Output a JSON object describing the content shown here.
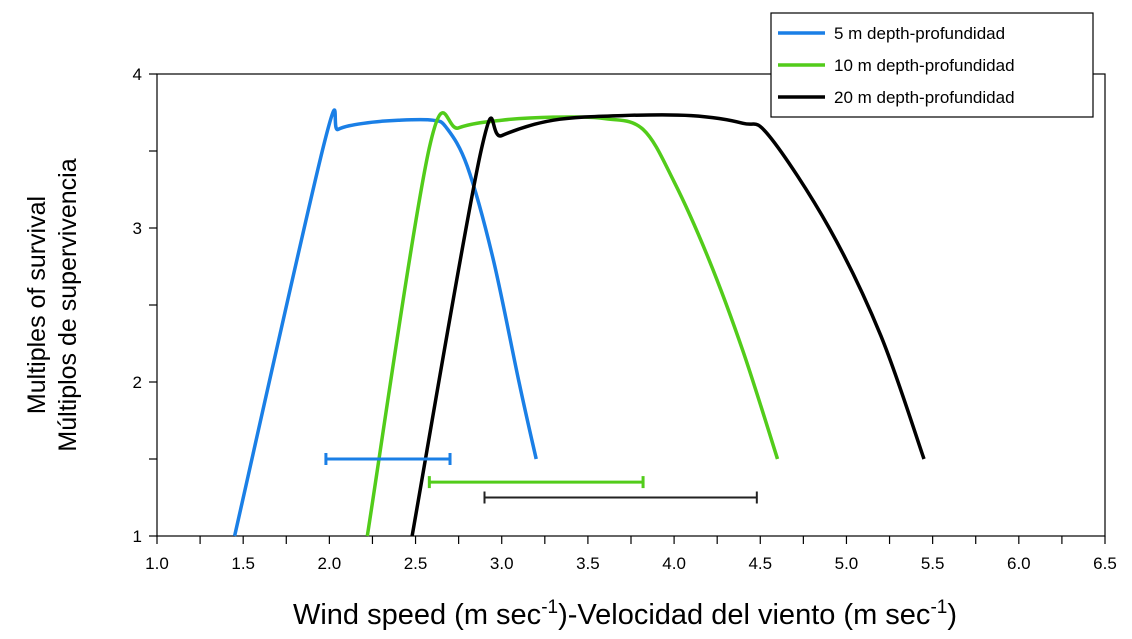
{
  "chart_data": {
    "type": "line",
    "xlabel": {
      "pre": "Wind speed (m sec",
      "sup1": "-1",
      "mid": ")-Velocidad del viento (m sec",
      "sup2": "-1",
      "post": ")"
    },
    "ylabel": [
      "Múltiplos de supervivencia",
      "Multiples of survival"
    ],
    "xlim": [
      1.0,
      6.5
    ],
    "ylim": [
      1,
      4
    ],
    "xticks": [
      "1.0",
      "1.5",
      "2.0",
      "2.5",
      "3.0",
      "3.5",
      "4.0",
      "4.5",
      "5.0",
      "5.5",
      "6.0",
      "6.5"
    ],
    "yticks": [
      "1",
      "2",
      "3",
      "4"
    ],
    "legend_position": "top-right, outside plot",
    "grid": false,
    "series": [
      {
        "name": "5 m depth-profundidad",
        "color": "#1a7fe6",
        "points": [
          [
            1.45,
            1.0
          ],
          [
            1.97,
            3.55
          ],
          [
            2.05,
            3.64
          ],
          [
            2.2,
            3.68
          ],
          [
            2.4,
            3.7
          ],
          [
            2.6,
            3.7
          ],
          [
            2.68,
            3.65
          ],
          [
            2.8,
            3.4
          ],
          [
            2.95,
            2.8
          ],
          [
            3.1,
            2.0
          ],
          [
            3.2,
            1.5
          ]
        ],
        "range_bar": {
          "x_min": 1.98,
          "x_max": 2.7,
          "y": 1.5
        }
      },
      {
        "name": "10 m depth-profundidad",
        "color": "#52cc1a",
        "points": [
          [
            2.22,
            1.0
          ],
          [
            2.58,
            3.52
          ],
          [
            2.75,
            3.65
          ],
          [
            3.0,
            3.7
          ],
          [
            3.3,
            3.72
          ],
          [
            3.6,
            3.71
          ],
          [
            3.82,
            3.64
          ],
          [
            4.0,
            3.3
          ],
          [
            4.2,
            2.8
          ],
          [
            4.4,
            2.2
          ],
          [
            4.6,
            1.5
          ]
        ],
        "range_bar": {
          "x_min": 2.58,
          "x_max": 3.82,
          "y": 1.35
        }
      },
      {
        "name": "20 m depth-profundidad",
        "color": "#000000",
        "points": [
          [
            2.48,
            1.0
          ],
          [
            2.88,
            3.5
          ],
          [
            3.0,
            3.6
          ],
          [
            3.3,
            3.7
          ],
          [
            3.7,
            3.73
          ],
          [
            4.1,
            3.73
          ],
          [
            4.4,
            3.68
          ],
          [
            4.55,
            3.6
          ],
          [
            4.9,
            3.0
          ],
          [
            5.2,
            2.3
          ],
          [
            5.45,
            1.5
          ]
        ],
        "range_bar": {
          "x_min": 2.9,
          "x_max": 4.48,
          "y": 1.25
        }
      }
    ]
  }
}
